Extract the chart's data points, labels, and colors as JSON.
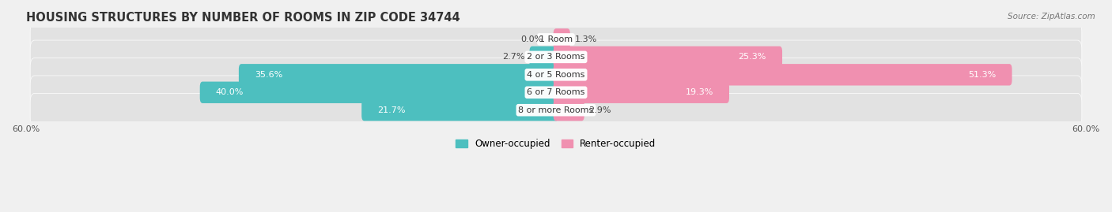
{
  "title": "HOUSING STRUCTURES BY NUMBER OF ROOMS IN ZIP CODE 34744",
  "source": "Source: ZipAtlas.com",
  "categories": [
    "1 Room",
    "2 or 3 Rooms",
    "4 or 5 Rooms",
    "6 or 7 Rooms",
    "8 or more Rooms"
  ],
  "owner_values": [
    0.0,
    2.7,
    35.6,
    40.0,
    21.7
  ],
  "renter_values": [
    1.3,
    25.3,
    51.3,
    19.3,
    2.9
  ],
  "owner_color": "#4dbfbf",
  "renter_color": "#f090b0",
  "bar_height": 0.62,
  "xlim": [
    -60,
    60
  ],
  "background_color": "#f0f0f0",
  "bar_bg_color": "#e2e2e2",
  "title_fontsize": 10.5,
  "source_fontsize": 7.5,
  "label_fontsize": 8,
  "legend_fontsize": 8.5,
  "category_fontsize": 8
}
